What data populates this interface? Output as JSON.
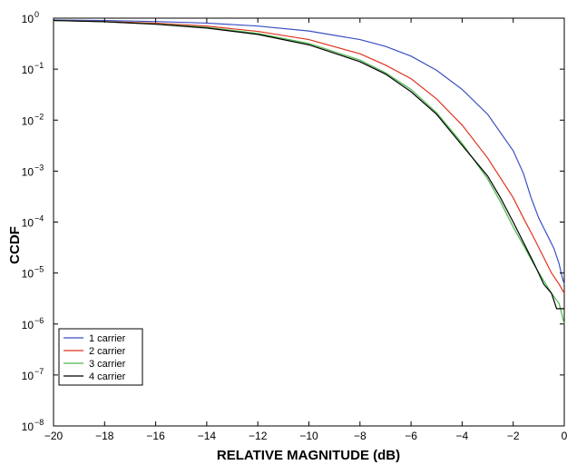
{
  "chart_data": {
    "type": "line",
    "title": "",
    "xlabel": "RELATIVE MAGNITUDE (dB)",
    "ylabel": "CCDF",
    "xlim": [
      -20,
      0
    ],
    "ylim": [
      1e-08,
      1
    ],
    "yscale": "log",
    "grid": false,
    "legend_position": "bottom-left",
    "x_ticks": [
      -20,
      -18,
      -16,
      -14,
      -12,
      -10,
      -8,
      -6,
      -4,
      -2,
      0
    ],
    "x_tick_labels": [
      "−20",
      "−18",
      "−16",
      "−14",
      "−12",
      "−10",
      "−8",
      "−6",
      "−4",
      "−2",
      "0"
    ],
    "y_ticks": [
      {
        "value": 1,
        "base": "10",
        "exp": "0"
      },
      {
        "value": 0.1,
        "base": "10",
        "exp": "−1"
      },
      {
        "value": 0.01,
        "base": "10",
        "exp": "−2"
      },
      {
        "value": 0.001,
        "base": "10",
        "exp": "−3"
      },
      {
        "value": 0.0001,
        "base": "10",
        "exp": "−4"
      },
      {
        "value": 1e-05,
        "base": "10",
        "exp": "−5"
      },
      {
        "value": 1e-06,
        "base": "10",
        "exp": "−6"
      },
      {
        "value": 1e-07,
        "base": "10",
        "exp": "−7"
      },
      {
        "value": 1e-08,
        "base": "10",
        "exp": "−8"
      }
    ],
    "series": [
      {
        "name": "1 carrier",
        "color": "#3a4fc4",
        "points": [
          [
            -20,
            0.92
          ],
          [
            -18,
            0.9
          ],
          [
            -16,
            0.86
          ],
          [
            -14,
            0.8
          ],
          [
            -12,
            0.7
          ],
          [
            -10,
            0.56
          ],
          [
            -8,
            0.38
          ],
          [
            -7,
            0.28
          ],
          [
            -6,
            0.18
          ],
          [
            -5,
            0.095
          ],
          [
            -4,
            0.04
          ],
          [
            -3,
            0.013
          ],
          [
            -2,
            0.0025
          ],
          [
            -1.6,
            0.0009
          ],
          [
            -1.3,
            0.0003
          ],
          [
            -1,
            0.00012
          ],
          [
            -0.7,
            6e-05
          ],
          [
            -0.4,
            3e-05
          ],
          [
            -0.2,
            1.5e-05
          ],
          [
            -0.1,
            9e-06
          ],
          [
            0,
            6e-06
          ]
        ]
      },
      {
        "name": "2 carrier",
        "color": "#e0331f",
        "points": [
          [
            -20,
            0.9
          ],
          [
            -18,
            0.86
          ],
          [
            -16,
            0.8
          ],
          [
            -14,
            0.7
          ],
          [
            -12,
            0.55
          ],
          [
            -10,
            0.38
          ],
          [
            -8,
            0.2
          ],
          [
            -7,
            0.12
          ],
          [
            -6,
            0.065
          ],
          [
            -5,
            0.026
          ],
          [
            -4,
            0.008
          ],
          [
            -3,
            0.0018
          ],
          [
            -2,
            0.0003
          ],
          [
            -1.6,
            0.00012
          ],
          [
            -1.2,
            5e-05
          ],
          [
            -0.8,
            2e-05
          ],
          [
            -0.5,
            1e-05
          ],
          [
            -0.2,
            6e-06
          ],
          [
            0,
            4e-06
          ]
        ]
      },
      {
        "name": "3 carrier",
        "color": "#4db84d",
        "points": [
          [
            -20,
            0.9
          ],
          [
            -18,
            0.85
          ],
          [
            -16,
            0.77
          ],
          [
            -14,
            0.66
          ],
          [
            -12,
            0.5
          ],
          [
            -10,
            0.32
          ],
          [
            -8,
            0.15
          ],
          [
            -7,
            0.085
          ],
          [
            -6,
            0.04
          ],
          [
            -5,
            0.014
          ],
          [
            -4,
            0.0035
          ],
          [
            -3,
            0.0007
          ],
          [
            -2.5,
            0.00025
          ],
          [
            -2,
            8e-05
          ],
          [
            -1.6,
            3.5e-05
          ],
          [
            -1.2,
            1.5e-05
          ],
          [
            -0.8,
            7e-06
          ],
          [
            -0.5,
            4e-06
          ],
          [
            -0.2,
            2.5e-06
          ],
          [
            0,
            1e-06
          ]
        ]
      },
      {
        "name": "4 carrier",
        "color": "#000000",
        "points": [
          [
            -20,
            0.9
          ],
          [
            -18,
            0.85
          ],
          [
            -16,
            0.76
          ],
          [
            -14,
            0.64
          ],
          [
            -12,
            0.48
          ],
          [
            -10,
            0.3
          ],
          [
            -8,
            0.14
          ],
          [
            -7,
            0.08
          ],
          [
            -6,
            0.036
          ],
          [
            -5,
            0.013
          ],
          [
            -4,
            0.0032
          ],
          [
            -3,
            0.0008
          ],
          [
            -2.5,
            0.0003
          ],
          [
            -2,
            0.0001
          ],
          [
            -1.6,
            4e-05
          ],
          [
            -1.2,
            1.6e-05
          ],
          [
            -0.8,
            6e-06
          ],
          [
            -0.5,
            4e-06
          ],
          [
            -0.3,
            2e-06
          ],
          [
            0,
            2e-06
          ]
        ]
      }
    ]
  }
}
